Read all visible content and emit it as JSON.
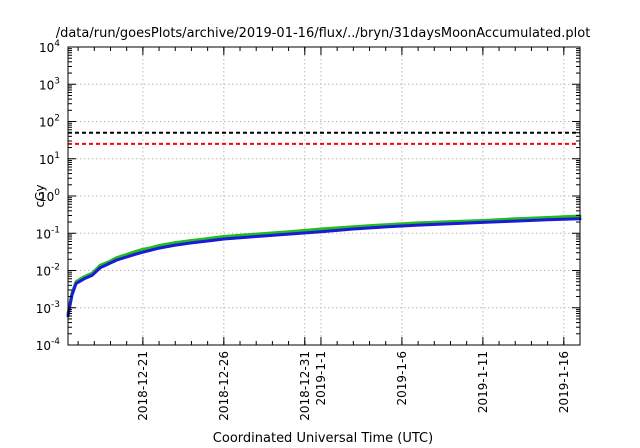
{
  "chart_data": {
    "type": "line",
    "title": "/data/run/goesPlots/archive/2019-01-16/flux/../bryn/31daysMoonAccumulated.plot",
    "xlabel": "Coordinated Universal Time (UTC)",
    "ylabel": "cGy",
    "yscale": "log",
    "ylim": [
      0.0001,
      10000
    ],
    "xlim": [
      "2018-12-16T09:00",
      "2019-01-17T00:00"
    ],
    "grid": true,
    "legend": "none",
    "y_ticks": [
      {
        "base": "10",
        "exp": "-4"
      },
      {
        "base": "10",
        "exp": "-3"
      },
      {
        "base": "10",
        "exp": "-2"
      },
      {
        "base": "10",
        "exp": "-1"
      },
      {
        "base": "10",
        "exp": "0"
      },
      {
        "base": "10",
        "exp": "1"
      },
      {
        "base": "10",
        "exp": "2"
      },
      {
        "base": "10",
        "exp": "3"
      },
      {
        "base": "10",
        "exp": "4"
      }
    ],
    "x_ticks": [
      {
        "date": "2018-12-21",
        "label": "2018-12-21"
      },
      {
        "date": "2018-12-26",
        "label": "2018-12-26"
      },
      {
        "date": "2018-12-31",
        "label": "2018-12-31"
      },
      {
        "date": "2019-01-01",
        "label": "2019-1-1"
      },
      {
        "date": "2019-01-06",
        "label": "2019-1-6"
      },
      {
        "date": "2019-01-11",
        "label": "2019-1-11"
      },
      {
        "date": "2019-01-16",
        "label": "2019-1-16"
      }
    ],
    "reference_lines": [
      {
        "y": 50,
        "color": "#000000",
        "style": "dashed"
      },
      {
        "y": 25,
        "color": "#ff0000",
        "style": "dashed"
      }
    ],
    "series": [
      {
        "color": "#22bb22",
        "points": [
          [
            "2018-12-16T09:00",
            0.0007
          ],
          [
            "2018-12-16T15:00",
            0.0025
          ],
          [
            "2018-12-16T21:00",
            0.005
          ],
          [
            "2018-12-17T09:00",
            0.0068
          ],
          [
            "2018-12-17T21:00",
            0.0085
          ],
          [
            "2018-12-18T09:00",
            0.014
          ],
          [
            "2018-12-18T21:00",
            0.017
          ],
          [
            "2018-12-19T09:00",
            0.022
          ],
          [
            "2018-12-20T00:00",
            0.027
          ],
          [
            "2018-12-20T12:00",
            0.032
          ],
          [
            "2018-12-21T00:00",
            0.037
          ],
          [
            "2018-12-21T12:00",
            0.041
          ],
          [
            "2018-12-22T00:00",
            0.047
          ],
          [
            "2018-12-23T00:00",
            0.056
          ],
          [
            "2018-12-24T00:00",
            0.064
          ],
          [
            "2018-12-25T00:00",
            0.072
          ],
          [
            "2018-12-26T00:00",
            0.082
          ],
          [
            "2018-12-28T00:00",
            0.095
          ],
          [
            "2018-12-30T00:00",
            0.11
          ],
          [
            "2019-01-01T00:00",
            0.13
          ],
          [
            "2019-01-03T00:00",
            0.15
          ],
          [
            "2019-01-05T00:00",
            0.17
          ],
          [
            "2019-01-07T00:00",
            0.19
          ],
          [
            "2019-01-09T00:00",
            0.205
          ],
          [
            "2019-01-11T00:00",
            0.22
          ],
          [
            "2019-01-13T00:00",
            0.245
          ],
          [
            "2019-01-15T00:00",
            0.265
          ],
          [
            "2019-01-17T00:00",
            0.29
          ]
        ]
      },
      {
        "color": "#1a1ad8",
        "points": [
          [
            "2018-12-16T09:00",
            0.0006
          ],
          [
            "2018-12-16T15:00",
            0.0022
          ],
          [
            "2018-12-16T21:00",
            0.0045
          ],
          [
            "2018-12-17T09:00",
            0.006
          ],
          [
            "2018-12-17T21:00",
            0.0075
          ],
          [
            "2018-12-18T09:00",
            0.012
          ],
          [
            "2018-12-18T21:00",
            0.015
          ],
          [
            "2018-12-19T09:00",
            0.019
          ],
          [
            "2018-12-20T00:00",
            0.023
          ],
          [
            "2018-12-20T12:00",
            0.027
          ],
          [
            "2018-12-21T00:00",
            0.031
          ],
          [
            "2018-12-21T12:00",
            0.035
          ],
          [
            "2018-12-22T00:00",
            0.04
          ],
          [
            "2018-12-23T00:00",
            0.048
          ],
          [
            "2018-12-24T00:00",
            0.055
          ],
          [
            "2018-12-25T00:00",
            0.062
          ],
          [
            "2018-12-26T00:00",
            0.07
          ],
          [
            "2018-12-28T00:00",
            0.082
          ],
          [
            "2018-12-30T00:00",
            0.095
          ],
          [
            "2019-01-01T00:00",
            0.11
          ],
          [
            "2019-01-03T00:00",
            0.13
          ],
          [
            "2019-01-05T00:00",
            0.148
          ],
          [
            "2019-01-07T00:00",
            0.165
          ],
          [
            "2019-01-09T00:00",
            0.18
          ],
          [
            "2019-01-11T00:00",
            0.195
          ],
          [
            "2019-01-13T00:00",
            0.212
          ],
          [
            "2019-01-15T00:00",
            0.23
          ],
          [
            "2019-01-17T00:00",
            0.245
          ]
        ]
      }
    ]
  }
}
